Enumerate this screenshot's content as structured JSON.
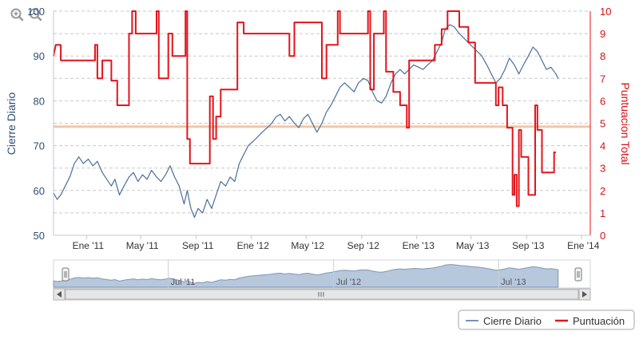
{
  "chart_data": {
    "type": "line",
    "xlabel": "",
    "x_ticks": [
      "Ene '11",
      "May '11",
      "Sep '11",
      "Ene '12",
      "May '12",
      "Sep '12",
      "Ene '13",
      "May '13",
      "Sep '13",
      "Ene '14"
    ],
    "x_tick_dates": [
      "2011-01-01",
      "2011-05-01",
      "2011-09-01",
      "2012-01-01",
      "2012-05-01",
      "2012-09-01",
      "2013-01-01",
      "2013-05-01",
      "2013-09-01",
      "2014-01-01"
    ],
    "xlim": [
      "2010-10-20",
      "2014-01-20"
    ],
    "y_left": {
      "label": "Cierre Diario",
      "ticks": [
        50,
        60,
        70,
        80,
        90,
        100
      ],
      "lim": [
        50,
        100
      ]
    },
    "y_right": {
      "label": "Puntuacion Total",
      "ticks": [
        0,
        1,
        2,
        3,
        4,
        5,
        6,
        7,
        8,
        9,
        10
      ],
      "lim": [
        0,
        10
      ]
    },
    "reference_line": {
      "axis": "right",
      "value": 4.85,
      "color": "#f5c6a5"
    },
    "grid": true,
    "legend_position": "bottom-right",
    "series": [
      {
        "name": "Cierre Diario",
        "axis": "left",
        "color": "#4a6f9b",
        "points": [
          [
            "2010-10-20",
            59.5
          ],
          [
            "2010-10-28",
            58
          ],
          [
            "2010-11-05",
            59
          ],
          [
            "2010-11-15",
            61
          ],
          [
            "2010-11-25",
            63
          ],
          [
            "2010-12-05",
            66
          ],
          [
            "2010-12-15",
            67.5
          ],
          [
            "2010-12-25",
            66
          ],
          [
            "2011-01-05",
            67
          ],
          [
            "2011-01-15",
            65.5
          ],
          [
            "2011-01-25",
            66.5
          ],
          [
            "2011-02-05",
            64
          ],
          [
            "2011-02-15",
            62.5
          ],
          [
            "2011-02-25",
            61
          ],
          [
            "2011-03-05",
            62.5
          ],
          [
            "2011-03-15",
            59
          ],
          [
            "2011-03-25",
            61
          ],
          [
            "2011-04-05",
            63
          ],
          [
            "2011-04-15",
            64
          ],
          [
            "2011-04-25",
            62
          ],
          [
            "2011-05-05",
            63.5
          ],
          [
            "2011-05-15",
            62.5
          ],
          [
            "2011-05-25",
            64.5
          ],
          [
            "2011-06-05",
            63
          ],
          [
            "2011-06-15",
            62
          ],
          [
            "2011-06-25",
            63.5
          ],
          [
            "2011-07-05",
            65.5
          ],
          [
            "2011-07-15",
            63
          ],
          [
            "2011-07-25",
            61
          ],
          [
            "2011-08-05",
            57
          ],
          [
            "2011-08-12",
            60
          ],
          [
            "2011-08-20",
            56
          ],
          [
            "2011-08-28",
            54
          ],
          [
            "2011-09-05",
            56
          ],
          [
            "2011-09-15",
            55
          ],
          [
            "2011-09-25",
            58
          ],
          [
            "2011-10-05",
            56
          ],
          [
            "2011-10-15",
            59
          ],
          [
            "2011-10-25",
            62
          ],
          [
            "2011-11-05",
            61
          ],
          [
            "2011-11-15",
            63
          ],
          [
            "2011-11-25",
            62
          ],
          [
            "2011-12-05",
            66
          ],
          [
            "2011-12-15",
            68
          ],
          [
            "2011-12-25",
            70
          ],
          [
            "2012-01-05",
            71
          ],
          [
            "2012-01-15",
            72
          ],
          [
            "2012-01-25",
            73
          ],
          [
            "2012-02-05",
            74
          ],
          [
            "2012-02-15",
            75
          ],
          [
            "2012-02-25",
            76.5
          ],
          [
            "2012-03-05",
            77
          ],
          [
            "2012-03-15",
            75.5
          ],
          [
            "2012-03-25",
            76.5
          ],
          [
            "2012-04-05",
            75
          ],
          [
            "2012-04-15",
            74
          ],
          [
            "2012-04-25",
            76
          ],
          [
            "2012-05-05",
            77
          ],
          [
            "2012-05-15",
            75
          ],
          [
            "2012-05-25",
            73
          ],
          [
            "2012-06-05",
            75
          ],
          [
            "2012-06-15",
            77.5
          ],
          [
            "2012-06-25",
            79
          ],
          [
            "2012-07-05",
            81
          ],
          [
            "2012-07-15",
            83
          ],
          [
            "2012-07-25",
            84
          ],
          [
            "2012-08-05",
            83
          ],
          [
            "2012-08-15",
            82
          ],
          [
            "2012-08-25",
            84
          ],
          [
            "2012-09-05",
            85
          ],
          [
            "2012-09-15",
            84.5
          ],
          [
            "2012-09-25",
            82
          ],
          [
            "2012-10-05",
            80
          ],
          [
            "2012-10-15",
            79.5
          ],
          [
            "2012-10-25",
            81
          ],
          [
            "2012-11-05",
            84
          ],
          [
            "2012-11-15",
            86
          ],
          [
            "2012-11-25",
            87
          ],
          [
            "2012-12-05",
            86
          ],
          [
            "2012-12-15",
            87
          ],
          [
            "2012-12-25",
            88
          ],
          [
            "2013-01-05",
            87.5
          ],
          [
            "2013-01-15",
            87
          ],
          [
            "2013-01-25",
            88
          ],
          [
            "2013-02-05",
            89
          ],
          [
            "2013-02-15",
            91
          ],
          [
            "2013-02-25",
            93
          ],
          [
            "2013-03-05",
            96
          ],
          [
            "2013-03-15",
            97
          ],
          [
            "2013-03-25",
            96.5
          ],
          [
            "2013-04-05",
            95
          ],
          [
            "2013-04-15",
            94
          ],
          [
            "2013-04-25",
            93
          ],
          [
            "2013-05-05",
            92
          ],
          [
            "2013-05-15",
            91
          ],
          [
            "2013-05-25",
            90
          ],
          [
            "2013-06-05",
            88
          ],
          [
            "2013-06-15",
            86
          ],
          [
            "2013-06-25",
            84
          ],
          [
            "2013-07-05",
            85
          ],
          [
            "2013-07-15",
            87
          ],
          [
            "2013-07-25",
            89.5
          ],
          [
            "2013-08-05",
            88
          ],
          [
            "2013-08-15",
            86
          ],
          [
            "2013-08-25",
            88
          ],
          [
            "2013-09-05",
            90
          ],
          [
            "2013-09-15",
            92
          ],
          [
            "2013-09-25",
            91
          ],
          [
            "2013-10-05",
            89
          ],
          [
            "2013-10-15",
            87
          ],
          [
            "2013-10-25",
            87.5
          ],
          [
            "2013-11-05",
            86
          ],
          [
            "2013-11-10",
            85
          ]
        ]
      },
      {
        "name": "Puntuación",
        "axis": "right",
        "color": "#e3141b",
        "points": [
          [
            "2010-10-20",
            8
          ],
          [
            "2010-10-25",
            8.5
          ],
          [
            "2010-11-05",
            8.5
          ],
          [
            "2010-11-05",
            7.8
          ],
          [
            "2011-01-20",
            7.8
          ],
          [
            "2011-01-20",
            8.5
          ],
          [
            "2011-01-25",
            8.5
          ],
          [
            "2011-01-25",
            7
          ],
          [
            "2011-02-05",
            7
          ],
          [
            "2011-02-05",
            7.8
          ],
          [
            "2011-02-25",
            7.8
          ],
          [
            "2011-02-25",
            6.9
          ],
          [
            "2011-03-10",
            6.9
          ],
          [
            "2011-03-10",
            5.8
          ],
          [
            "2011-04-05",
            5.8
          ],
          [
            "2011-04-05",
            9
          ],
          [
            "2011-04-12",
            9
          ],
          [
            "2011-04-12",
            10
          ],
          [
            "2011-04-20",
            10
          ],
          [
            "2011-04-20",
            9
          ],
          [
            "2011-06-05",
            9
          ],
          [
            "2011-06-05",
            10
          ],
          [
            "2011-06-10",
            10
          ],
          [
            "2011-06-10",
            7
          ],
          [
            "2011-07-01",
            7
          ],
          [
            "2011-07-01",
            9
          ],
          [
            "2011-07-10",
            9
          ],
          [
            "2011-07-10",
            8
          ],
          [
            "2011-08-08",
            8
          ],
          [
            "2011-08-08",
            10
          ],
          [
            "2011-08-12",
            10
          ],
          [
            "2011-08-12",
            4.3
          ],
          [
            "2011-08-18",
            4.3
          ],
          [
            "2011-08-18",
            3.2
          ],
          [
            "2011-10-01",
            3.2
          ],
          [
            "2011-10-01",
            6.2
          ],
          [
            "2011-10-08",
            6.2
          ],
          [
            "2011-10-08",
            4.3
          ],
          [
            "2011-10-15",
            4.3
          ],
          [
            "2011-10-15",
            5.3
          ],
          [
            "2011-10-25",
            5.3
          ],
          [
            "2011-10-25",
            6.5
          ],
          [
            "2011-12-01",
            6.5
          ],
          [
            "2011-12-01",
            9.5
          ],
          [
            "2011-12-15",
            9.5
          ],
          [
            "2011-12-15",
            9
          ],
          [
            "2012-03-25",
            9
          ],
          [
            "2012-03-25",
            8
          ],
          [
            "2012-04-05",
            8
          ],
          [
            "2012-04-05",
            9.5
          ],
          [
            "2012-06-05",
            9.5
          ],
          [
            "2012-06-05",
            7
          ],
          [
            "2012-06-15",
            7
          ],
          [
            "2012-06-15",
            8.5
          ],
          [
            "2012-07-10",
            8.5
          ],
          [
            "2012-07-10",
            10
          ],
          [
            "2012-07-15",
            10
          ],
          [
            "2012-07-15",
            9
          ],
          [
            "2012-09-15",
            9
          ],
          [
            "2012-09-15",
            10
          ],
          [
            "2012-09-20",
            10
          ],
          [
            "2012-09-20",
            6.5
          ],
          [
            "2012-09-28",
            6.5
          ],
          [
            "2012-09-28",
            9
          ],
          [
            "2012-10-20",
            9
          ],
          [
            "2012-10-20",
            10
          ],
          [
            "2012-10-25",
            10
          ],
          [
            "2012-10-25",
            7.3
          ],
          [
            "2012-11-10",
            7.3
          ],
          [
            "2012-11-10",
            6.4
          ],
          [
            "2012-11-25",
            6.4
          ],
          [
            "2012-11-25",
            5.8
          ],
          [
            "2012-12-10",
            5.8
          ],
          [
            "2012-12-10",
            4.8
          ],
          [
            "2012-12-15",
            4.8
          ],
          [
            "2012-12-15",
            7.8
          ],
          [
            "2013-02-10",
            7.8
          ],
          [
            "2013-02-10",
            8.5
          ],
          [
            "2013-02-25",
            8.5
          ],
          [
            "2013-02-25",
            9.2
          ],
          [
            "2013-03-10",
            9.2
          ],
          [
            "2013-03-10",
            10
          ],
          [
            "2013-04-05",
            10
          ],
          [
            "2013-04-05",
            9.3
          ],
          [
            "2013-04-25",
            9.3
          ],
          [
            "2013-04-25",
            8.6
          ],
          [
            "2013-05-10",
            8.6
          ],
          [
            "2013-05-10",
            6.8
          ],
          [
            "2013-06-25",
            6.8
          ],
          [
            "2013-06-25",
            5.8
          ],
          [
            "2013-07-01",
            5.8
          ],
          [
            "2013-07-01",
            6.6
          ],
          [
            "2013-07-10",
            6.6
          ],
          [
            "2013-07-10",
            5.8
          ],
          [
            "2013-07-20",
            5.8
          ],
          [
            "2013-07-20",
            4.8
          ],
          [
            "2013-08-01",
            4.8
          ],
          [
            "2013-08-01",
            1.8
          ],
          [
            "2013-08-05",
            1.8
          ],
          [
            "2013-08-05",
            2.7
          ],
          [
            "2013-08-10",
            2.7
          ],
          [
            "2013-08-10",
            1.3
          ],
          [
            "2013-08-15",
            1.3
          ],
          [
            "2013-08-15",
            4.7
          ],
          [
            "2013-08-20",
            4.7
          ],
          [
            "2013-08-20",
            3.5
          ],
          [
            "2013-09-05",
            3.5
          ],
          [
            "2013-09-05",
            1.8
          ],
          [
            "2013-09-20",
            1.8
          ],
          [
            "2013-09-20",
            5.8
          ],
          [
            "2013-09-25",
            5.8
          ],
          [
            "2013-09-25",
            4.7
          ],
          [
            "2013-10-05",
            4.7
          ],
          [
            "2013-10-05",
            2.8
          ],
          [
            "2013-11-01",
            2.8
          ],
          [
            "2013-11-01",
            3.7
          ],
          [
            "2013-11-05",
            3.7
          ]
        ]
      }
    ],
    "navigator": {
      "x_labels": [
        "Jul '11",
        "Jul '12",
        "Jul '13"
      ],
      "x_label_dates": [
        "2011-07-01",
        "2012-07-01",
        "2013-07-01"
      ],
      "selected_range": [
        "2010-10-20",
        "2014-01-20"
      ]
    },
    "legend": [
      {
        "name": "Cierre Diario",
        "color": "#4a6f9b"
      },
      {
        "name": "Puntuación",
        "color": "#e3141b"
      }
    ]
  },
  "toolbar": {
    "zoom_in_icon": "zoom-in-icon",
    "zoom_out_icon": "zoom-out-icon"
  },
  "scrollbar": {
    "left_arrow_icon": "arrow-left-icon",
    "right_arrow_icon": "arrow-right-icon",
    "grip_icon": "grip-icon"
  }
}
